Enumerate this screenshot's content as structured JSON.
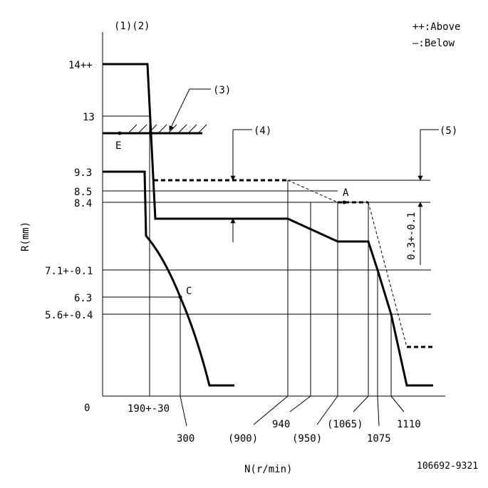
{
  "header": {
    "markers": "(1)(2)",
    "legend_above": "++:Above",
    "legend_below": "—:Below"
  },
  "axes": {
    "y_label": "R(mm)",
    "x_label": "N(r/min)",
    "origin": "0"
  },
  "y_ticks": {
    "t14": "14++",
    "t13": "13",
    "t93": "9.3",
    "t85": "8.5",
    "t84": "8.4",
    "t71": "7.1+-0.1",
    "t63": "6.3",
    "t56": "5.6+-0.4"
  },
  "x_ticks": {
    "t190": "190+-30",
    "t300": "300",
    "t900": "(900)",
    "t940": "940",
    "t950": "(950)",
    "t1065": "(1065)",
    "t1075": "1075",
    "t1110": "1110"
  },
  "callouts": {
    "c3": "(3)",
    "c4": "(4)",
    "c5": "(5)",
    "dim5": "0.3+-0.1"
  },
  "points": {
    "a": "A",
    "c": "C",
    "e": "E"
  },
  "drawing_id": "106692-9321"
}
